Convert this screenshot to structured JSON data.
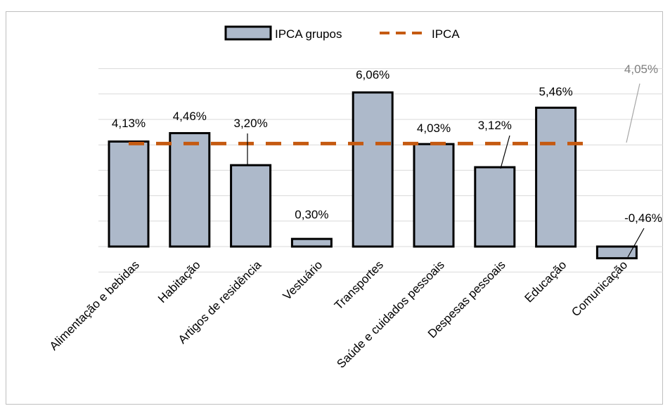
{
  "chart_data": {
    "type": "bar",
    "categories": [
      "Alimentação e bebidas",
      "Habitação",
      "Artigos de residência",
      "Vestuário",
      "Transportes",
      "Saúde e cuidados pessoais",
      "Despesas pessoais",
      "Educação",
      "Comunicação"
    ],
    "series": [
      {
        "name": "IPCA grupos",
        "type": "bar",
        "values": [
          4.13,
          4.46,
          3.2,
          0.3,
          6.06,
          4.03,
          3.12,
          5.46,
          -0.46
        ],
        "labels": [
          "4,13%",
          "4,46%",
          "3,20%",
          "0,30%",
          "6,06%",
          "4,03%",
          "3,12%",
          "5,46%",
          "-0,46%"
        ],
        "color": "#adb9ca"
      },
      {
        "name": "IPCA",
        "type": "line",
        "style": "dashed",
        "value": 4.05,
        "label": "4,05%",
        "color": "#c55a11"
      }
    ],
    "ylim": [
      -1,
      7
    ],
    "grid": true,
    "legend": "top-center",
    "title": "",
    "xlabel": "",
    "ylabel": ""
  }
}
